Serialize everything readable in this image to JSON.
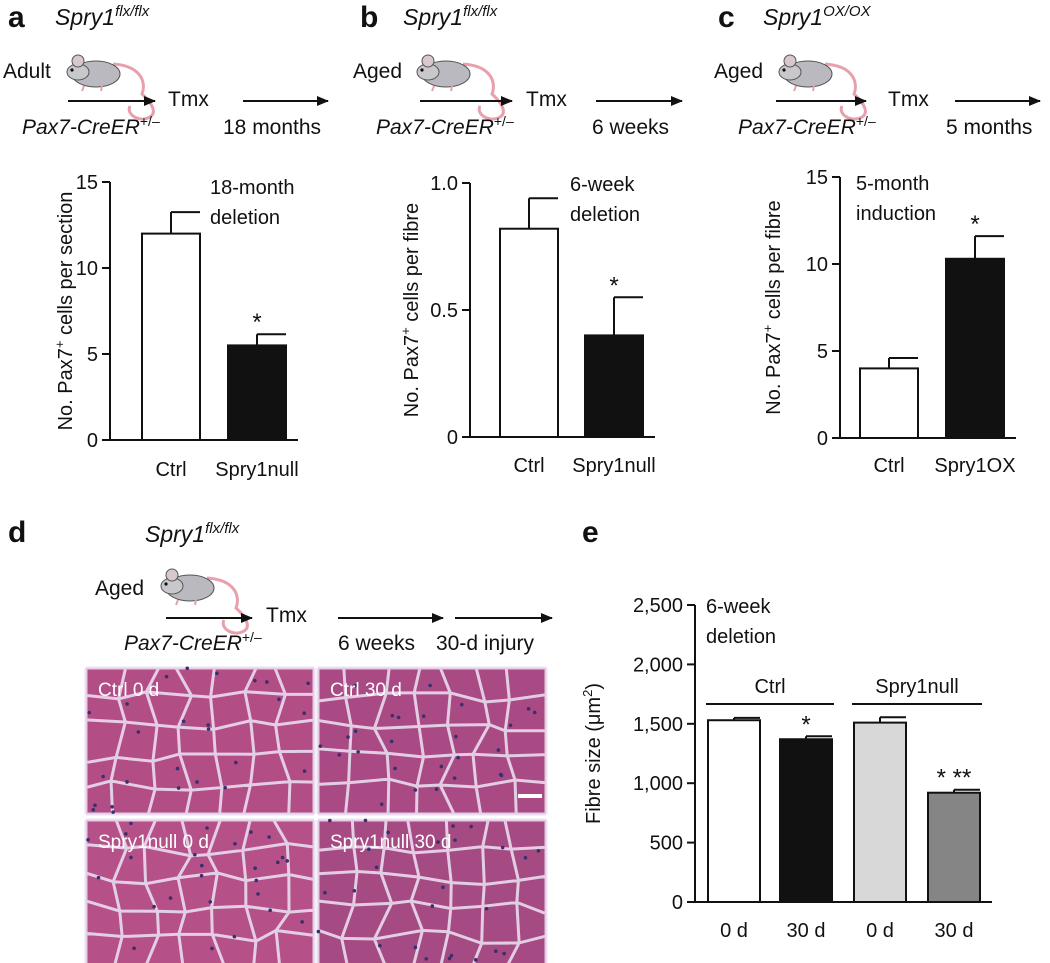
{
  "panels": {
    "a": {
      "label": "a",
      "genotype": "Spry1",
      "genotype_sup": "flx/flx",
      "age": "Adult",
      "driver": "Pax7-CreER",
      "driver_sup": "+/–",
      "treatment": "Tmx",
      "duration": "18 months"
    },
    "b": {
      "label": "b",
      "genotype": "Spry1",
      "genotype_sup": "flx/flx",
      "age": "Aged",
      "driver": "Pax7-CreER",
      "driver_sup": "+/–",
      "treatment": "Tmx",
      "duration": "6 weeks"
    },
    "c": {
      "label": "c",
      "genotype": "Spry1",
      "genotype_sup": "OX/OX",
      "age": "Aged",
      "driver": "Pax7-CreER",
      "driver_sup": "+/–",
      "treatment": "Tmx",
      "duration": "5 months"
    },
    "d": {
      "label": "d",
      "genotype": "Spry1",
      "genotype_sup": "flx/flx",
      "age": "Aged",
      "driver": "Pax7-CreER",
      "driver_sup": "+/–",
      "treatment": "Tmx",
      "duration1": "6 weeks",
      "duration2": "30-d injury",
      "images": [
        {
          "label": "Ctrl 0 d",
          "color": "#b24d86"
        },
        {
          "label": "Ctrl 30 d",
          "color": "#a94a84"
        },
        {
          "label": "Spry1null 0 d",
          "color": "#b65089"
        },
        {
          "label": "Spry1null 30 d",
          "color": "#a54a82"
        }
      ]
    },
    "e": {
      "label": "e"
    }
  },
  "chart_data": [
    {
      "id": "a",
      "type": "bar",
      "categories": [
        "Ctrl",
        "Spry1null"
      ],
      "values": [
        12.0,
        5.5
      ],
      "errors": [
        1.25,
        0.65
      ],
      "bar_colors": [
        "#ffffff",
        "#111111"
      ],
      "significance": [
        "",
        "*"
      ],
      "ylabel": "No. Pax7",
      "ylabel_sup": "+",
      "ylabel_rest": " cells per section",
      "annotation": [
        "18-month",
        "deletion"
      ],
      "ylim": [
        0,
        15
      ],
      "yticks": [
        0,
        5,
        10,
        15
      ],
      "ytick_labels": [
        "0",
        "5",
        "10",
        "15"
      ]
    },
    {
      "id": "b",
      "type": "bar",
      "categories": [
        "Ctrl",
        "Spry1null"
      ],
      "values": [
        0.82,
        0.4
      ],
      "errors": [
        0.12,
        0.15
      ],
      "bar_colors": [
        "#ffffff",
        "#111111"
      ],
      "significance": [
        "",
        "*"
      ],
      "ylabel": "No. Pax7",
      "ylabel_sup": "+",
      "ylabel_rest": " cells per fibre",
      "annotation": [
        "6-week",
        "deletion"
      ],
      "ylim": [
        0,
        1.0
      ],
      "yticks": [
        0,
        0.5,
        1.0
      ],
      "ytick_labels": [
        "0",
        "0.5",
        "1.0"
      ]
    },
    {
      "id": "c",
      "type": "bar",
      "categories": [
        "Ctrl",
        "Spry1OX"
      ],
      "values": [
        4.0,
        10.3
      ],
      "errors": [
        0.6,
        1.3
      ],
      "bar_colors": [
        "#ffffff",
        "#111111"
      ],
      "significance": [
        "",
        "*"
      ],
      "ylabel": "No. Pax7",
      "ylabel_sup": "+",
      "ylabel_rest": " cells per fibre",
      "annotation": [
        "5-month",
        "induction"
      ],
      "ylim": [
        0,
        15
      ],
      "yticks": [
        0,
        5,
        10,
        15
      ],
      "ytick_labels": [
        "0",
        "5",
        "10",
        "15"
      ]
    },
    {
      "id": "e",
      "type": "bar",
      "categories": [
        "0 d",
        "30 d",
        "0 d",
        "30 d"
      ],
      "groups": [
        {
          "name": "Ctrl",
          "indices": [
            0,
            1
          ]
        },
        {
          "name": "Spry1null",
          "indices": [
            2,
            3
          ]
        }
      ],
      "values": [
        1530,
        1370,
        1510,
        920
      ],
      "errors": [
        20,
        25,
        45,
        25
      ],
      "bar_colors": [
        "#ffffff",
        "#111111",
        "#d8d8d8",
        "#858585"
      ],
      "significance": [
        "",
        "*",
        "",
        "*  **"
      ],
      "ylabel": "Fibre size (μm",
      "ylabel_sup": "2",
      "ylabel_rest": ")",
      "annotation": [
        "6-week",
        "deletion"
      ],
      "ylim": [
        0,
        2500
      ],
      "yticks": [
        0,
        500,
        1000,
        1500,
        2000,
        2500
      ],
      "ytick_labels": [
        "0",
        "500",
        "1,000",
        "1,500",
        "2,000",
        "2,500"
      ]
    }
  ]
}
